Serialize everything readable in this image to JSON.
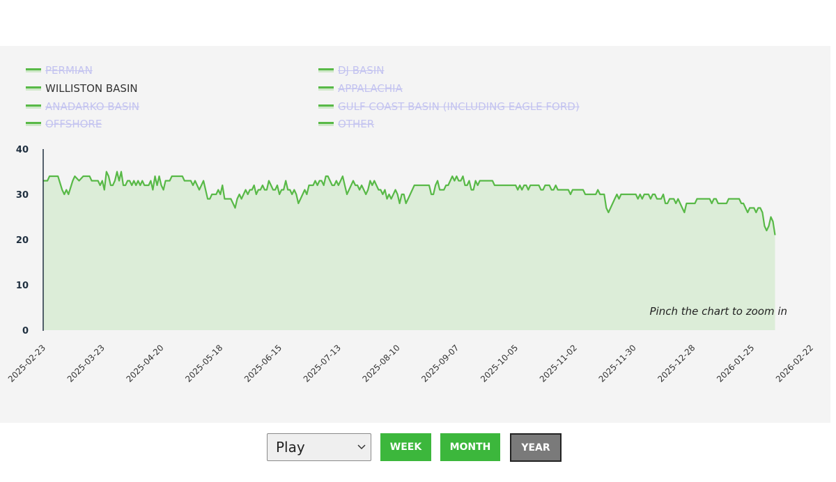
{
  "legend": [
    {
      "label": "PERMIAN",
      "visible": false
    },
    {
      "label": "DJ BASIN",
      "visible": false
    },
    {
      "label": "WILLISTON BASIN",
      "visible": true
    },
    {
      "label": "APPALACHIA",
      "visible": false
    },
    {
      "label": "ANADARKO BASIN",
      "visible": false
    },
    {
      "label": "GULF COAST BASIN (INCLUDING EAGLE FORD)",
      "visible": false
    },
    {
      "label": "OFFSHORE",
      "visible": false
    },
    {
      "label": "OTHER",
      "visible": false
    }
  ],
  "hint": "Pinch the chart to zoom in",
  "controls": {
    "select_value": "Play",
    "week_label": "WEEK",
    "month_label": "MONTH",
    "year_label": "YEAR"
  },
  "colors": {
    "line": "#58b947",
    "area": "#dcedd8",
    "button_active": "#3cb73c",
    "button_selected": "#7a7a7a",
    "legend_hidden": "#c3c3f0"
  },
  "chart_data": {
    "type": "area",
    "title": "",
    "xlabel": "",
    "ylabel": "",
    "ylim": [
      0,
      40
    ],
    "yticks": [
      "0",
      "10",
      "20",
      "30",
      "40"
    ],
    "xlim": [
      "2025-02-23",
      "2026-02-22"
    ],
    "xticks": [
      "2025-02-23",
      "2025-03-23",
      "2025-04-20",
      "2025-05-18",
      "2025-06-15",
      "2025-07-13",
      "2025-08-10",
      "2025-09-07",
      "2025-10-05",
      "2025-11-02",
      "2025-11-30",
      "2025-12-28",
      "2026-01-25",
      "2026-02-22"
    ],
    "grid": false,
    "legend_position": "top",
    "series": [
      {
        "name": "WILLISTON BASIN",
        "points": [
          [
            "2025-02-23",
            33
          ],
          [
            "2025-02-25",
            33
          ],
          [
            "2025-02-26",
            34
          ],
          [
            "2025-03-02",
            34
          ],
          [
            "2025-03-04",
            31
          ],
          [
            "2025-03-05",
            30
          ],
          [
            "2025-03-06",
            31
          ],
          [
            "2025-03-07",
            30
          ],
          [
            "2025-03-09",
            33
          ],
          [
            "2025-03-10",
            34
          ],
          [
            "2025-03-12",
            33
          ],
          [
            "2025-03-14",
            34
          ],
          [
            "2025-03-17",
            34
          ],
          [
            "2025-03-18",
            33
          ],
          [
            "2025-03-21",
            33
          ],
          [
            "2025-03-22",
            32
          ],
          [
            "2025-03-23",
            33
          ],
          [
            "2025-03-24",
            31
          ],
          [
            "2025-03-25",
            35
          ],
          [
            "2025-03-26",
            34
          ],
          [
            "2025-03-27",
            32
          ],
          [
            "2025-03-28",
            32
          ],
          [
            "2025-03-29",
            33
          ],
          [
            "2025-03-30",
            35
          ],
          [
            "2025-03-31",
            33
          ],
          [
            "2025-04-01",
            35
          ],
          [
            "2025-04-02",
            32
          ],
          [
            "2025-04-03",
            32
          ],
          [
            "2025-04-04",
            33
          ],
          [
            "2025-04-05",
            33
          ],
          [
            "2025-04-06",
            32
          ],
          [
            "2025-04-07",
            33
          ],
          [
            "2025-04-08",
            32
          ],
          [
            "2025-04-09",
            33
          ],
          [
            "2025-04-10",
            32
          ],
          [
            "2025-04-11",
            33
          ],
          [
            "2025-04-12",
            32
          ],
          [
            "2025-04-14",
            32
          ],
          [
            "2025-04-15",
            33
          ],
          [
            "2025-04-16",
            31
          ],
          [
            "2025-04-17",
            34
          ],
          [
            "2025-04-18",
            32
          ],
          [
            "2025-04-19",
            34
          ],
          [
            "2025-04-20",
            32
          ],
          [
            "2025-04-21",
            31
          ],
          [
            "2025-04-22",
            33
          ],
          [
            "2025-04-24",
            33
          ],
          [
            "2025-04-25",
            34
          ],
          [
            "2025-04-30",
            34
          ],
          [
            "2025-05-01",
            33
          ],
          [
            "2025-05-04",
            33
          ],
          [
            "2025-05-05",
            32
          ],
          [
            "2025-05-06",
            33
          ],
          [
            "2025-05-07",
            32
          ],
          [
            "2025-05-08",
            31
          ],
          [
            "2025-05-09",
            32
          ],
          [
            "2025-05-10",
            33
          ],
          [
            "2025-05-11",
            31
          ],
          [
            "2025-05-12",
            29
          ],
          [
            "2025-05-13",
            29
          ],
          [
            "2025-05-14",
            30
          ],
          [
            "2025-05-16",
            30
          ],
          [
            "2025-05-17",
            31
          ],
          [
            "2025-05-18",
            30
          ],
          [
            "2025-05-19",
            32
          ],
          [
            "2025-05-20",
            29
          ],
          [
            "2025-05-23",
            29
          ],
          [
            "2025-05-24",
            28
          ],
          [
            "2025-05-25",
            27
          ],
          [
            "2025-05-26",
            29
          ],
          [
            "2025-05-27",
            30
          ],
          [
            "2025-05-28",
            29
          ],
          [
            "2025-05-29",
            30
          ],
          [
            "2025-05-30",
            31
          ],
          [
            "2025-05-31",
            30
          ],
          [
            "2025-06-01",
            31
          ],
          [
            "2025-06-02",
            31
          ],
          [
            "2025-06-03",
            32
          ],
          [
            "2025-06-04",
            30
          ],
          [
            "2025-06-05",
            31
          ],
          [
            "2025-06-06",
            31
          ],
          [
            "2025-06-07",
            32
          ],
          [
            "2025-06-08",
            31
          ],
          [
            "2025-06-09",
            31
          ],
          [
            "2025-06-10",
            33
          ],
          [
            "2025-06-11",
            32
          ],
          [
            "2025-06-12",
            31
          ],
          [
            "2025-06-13",
            31
          ],
          [
            "2025-06-14",
            32
          ],
          [
            "2025-06-15",
            30
          ],
          [
            "2025-06-16",
            31
          ],
          [
            "2025-06-17",
            31
          ],
          [
            "2025-06-18",
            33
          ],
          [
            "2025-06-19",
            31
          ],
          [
            "2025-06-20",
            31
          ],
          [
            "2025-06-21",
            30
          ],
          [
            "2025-06-22",
            31
          ],
          [
            "2025-06-23",
            30
          ],
          [
            "2025-06-24",
            28
          ],
          [
            "2025-06-25",
            29
          ],
          [
            "2025-06-26",
            30
          ],
          [
            "2025-06-27",
            31
          ],
          [
            "2025-06-28",
            30
          ],
          [
            "2025-06-29",
            32
          ],
          [
            "2025-07-01",
            32
          ],
          [
            "2025-07-02",
            33
          ],
          [
            "2025-07-03",
            32
          ],
          [
            "2025-07-04",
            33
          ],
          [
            "2025-07-05",
            33
          ],
          [
            "2025-07-06",
            32
          ],
          [
            "2025-07-07",
            34
          ],
          [
            "2025-07-08",
            34
          ],
          [
            "2025-07-09",
            33
          ],
          [
            "2025-07-10",
            32
          ],
          [
            "2025-07-11",
            32
          ],
          [
            "2025-07-12",
            33
          ],
          [
            "2025-07-13",
            32
          ],
          [
            "2025-07-14",
            33
          ],
          [
            "2025-07-15",
            34
          ],
          [
            "2025-07-16",
            32
          ],
          [
            "2025-07-17",
            30
          ],
          [
            "2025-07-18",
            31
          ],
          [
            "2025-07-19",
            32
          ],
          [
            "2025-07-20",
            33
          ],
          [
            "2025-07-21",
            32
          ],
          [
            "2025-07-22",
            32
          ],
          [
            "2025-07-23",
            31
          ],
          [
            "2025-07-24",
            32
          ],
          [
            "2025-07-25",
            31
          ],
          [
            "2025-07-26",
            30
          ],
          [
            "2025-07-27",
            31
          ],
          [
            "2025-07-28",
            33
          ],
          [
            "2025-07-29",
            32
          ],
          [
            "2025-07-30",
            33
          ],
          [
            "2025-07-31",
            32
          ],
          [
            "2025-08-01",
            31
          ],
          [
            "2025-08-02",
            31
          ],
          [
            "2025-08-03",
            30
          ],
          [
            "2025-08-04",
            31
          ],
          [
            "2025-08-05",
            29
          ],
          [
            "2025-08-06",
            30
          ],
          [
            "2025-08-07",
            29
          ],
          [
            "2025-08-08",
            30
          ],
          [
            "2025-08-09",
            31
          ],
          [
            "2025-08-10",
            30
          ],
          [
            "2025-08-11",
            28
          ],
          [
            "2025-08-12",
            30
          ],
          [
            "2025-08-13",
            30
          ],
          [
            "2025-08-14",
            28
          ],
          [
            "2025-08-15",
            29
          ],
          [
            "2025-08-16",
            30
          ],
          [
            "2025-08-17",
            31
          ],
          [
            "2025-08-18",
            32
          ],
          [
            "2025-08-25",
            32
          ],
          [
            "2025-08-26",
            30
          ],
          [
            "2025-08-27",
            30
          ],
          [
            "2025-08-28",
            32
          ],
          [
            "2025-08-29",
            33
          ],
          [
            "2025-08-30",
            31
          ],
          [
            "2025-09-01",
            31
          ],
          [
            "2025-09-02",
            32
          ],
          [
            "2025-09-03",
            32
          ],
          [
            "2025-09-05",
            34
          ],
          [
            "2025-09-06",
            33
          ],
          [
            "2025-09-07",
            34
          ],
          [
            "2025-09-08",
            33
          ],
          [
            "2025-09-09",
            33
          ],
          [
            "2025-09-10",
            34
          ],
          [
            "2025-09-11",
            32
          ],
          [
            "2025-09-12",
            32
          ],
          [
            "2025-09-13",
            33
          ],
          [
            "2025-09-14",
            31
          ],
          [
            "2025-09-15",
            31
          ],
          [
            "2025-09-16",
            33
          ],
          [
            "2025-09-17",
            32
          ],
          [
            "2025-09-18",
            33
          ],
          [
            "2025-09-24",
            33
          ],
          [
            "2025-09-25",
            32
          ],
          [
            "2025-10-05",
            32
          ],
          [
            "2025-10-06",
            31
          ],
          [
            "2025-10-07",
            32
          ],
          [
            "2025-10-08",
            31
          ],
          [
            "2025-10-09",
            32
          ],
          [
            "2025-10-10",
            32
          ],
          [
            "2025-10-11",
            31
          ],
          [
            "2025-10-12",
            32
          ],
          [
            "2025-10-16",
            32
          ],
          [
            "2025-10-17",
            31
          ],
          [
            "2025-10-18",
            31
          ],
          [
            "2025-10-19",
            32
          ],
          [
            "2025-10-21",
            32
          ],
          [
            "2025-10-22",
            31
          ],
          [
            "2025-10-23",
            31
          ],
          [
            "2025-10-24",
            32
          ],
          [
            "2025-10-25",
            31
          ],
          [
            "2025-10-30",
            31
          ],
          [
            "2025-10-31",
            30
          ],
          [
            "2025-11-01",
            31
          ],
          [
            "2025-11-06",
            31
          ],
          [
            "2025-11-07",
            30
          ],
          [
            "2025-11-12",
            30
          ],
          [
            "2025-11-13",
            31
          ],
          [
            "2025-11-14",
            30
          ],
          [
            "2025-11-16",
            30
          ],
          [
            "2025-11-17",
            27
          ],
          [
            "2025-11-18",
            26
          ],
          [
            "2025-11-19",
            27
          ],
          [
            "2025-11-21",
            29
          ],
          [
            "2025-11-22",
            30
          ],
          [
            "2025-11-23",
            29
          ],
          [
            "2025-11-24",
            30
          ],
          [
            "2025-12-01",
            30
          ],
          [
            "2025-12-02",
            29
          ],
          [
            "2025-12-03",
            30
          ],
          [
            "2025-12-04",
            29
          ],
          [
            "2025-12-05",
            30
          ],
          [
            "2025-12-07",
            30
          ],
          [
            "2025-12-08",
            29
          ],
          [
            "2025-12-09",
            30
          ],
          [
            "2025-12-10",
            30
          ],
          [
            "2025-12-11",
            29
          ],
          [
            "2025-12-13",
            29
          ],
          [
            "2025-12-14",
            30
          ],
          [
            "2025-12-15",
            28
          ],
          [
            "2025-12-16",
            28
          ],
          [
            "2025-12-17",
            29
          ],
          [
            "2025-12-19",
            29
          ],
          [
            "2025-12-20",
            28
          ],
          [
            "2025-12-21",
            29
          ],
          [
            "2025-12-22",
            28
          ],
          [
            "2025-12-23",
            27
          ],
          [
            "2025-12-24",
            26
          ],
          [
            "2025-12-25",
            28
          ],
          [
            "2025-12-29",
            28
          ],
          [
            "2025-12-30",
            29
          ],
          [
            "2026-01-05",
            29
          ],
          [
            "2026-01-06",
            28
          ],
          [
            "2026-01-07",
            29
          ],
          [
            "2026-01-08",
            29
          ],
          [
            "2026-01-09",
            28
          ],
          [
            "2026-01-13",
            28
          ],
          [
            "2026-01-14",
            29
          ],
          [
            "2026-01-19",
            29
          ],
          [
            "2026-01-20",
            28
          ],
          [
            "2026-01-21",
            28
          ],
          [
            "2026-01-22",
            27
          ],
          [
            "2026-01-23",
            26
          ],
          [
            "2026-01-24",
            27
          ],
          [
            "2026-01-26",
            27
          ],
          [
            "2026-01-27",
            26
          ],
          [
            "2026-01-28",
            27
          ],
          [
            "2026-01-29",
            27
          ],
          [
            "2026-01-30",
            26
          ],
          [
            "2026-01-31",
            23
          ],
          [
            "2026-02-01",
            22
          ],
          [
            "2026-02-02",
            23
          ],
          [
            "2026-02-03",
            25
          ],
          [
            "2026-02-04",
            24
          ],
          [
            "2026-02-05",
            21
          ]
        ]
      }
    ]
  }
}
